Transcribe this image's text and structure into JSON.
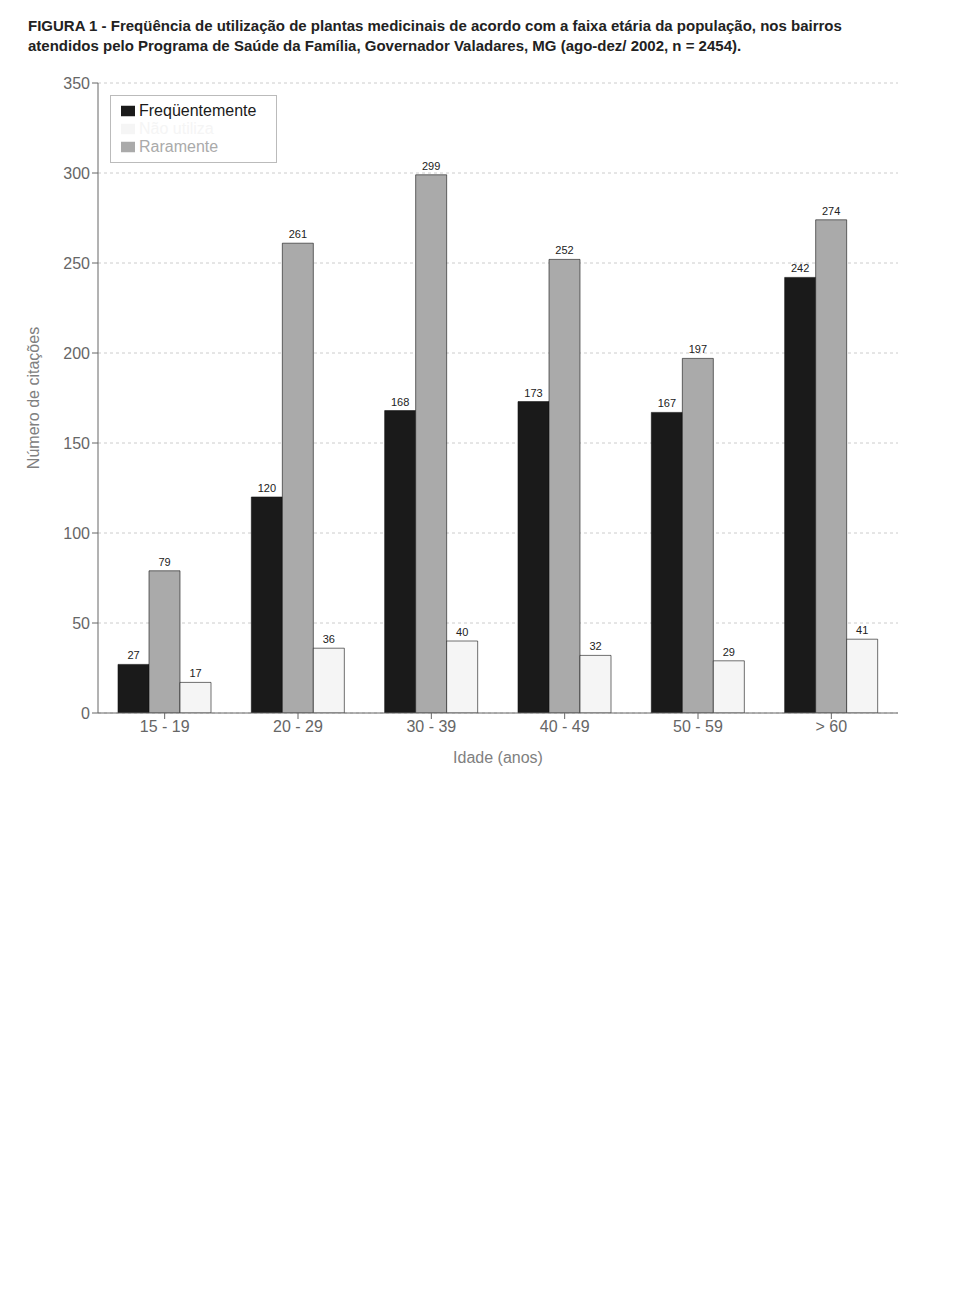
{
  "chart_data": {
    "type": "bar",
    "title": "FIGURA 1 - Freqüência de utilização de plantas medicinais de acordo com a faixa etária da população, nos bairros atendidos pelo Programa de Saúde da Família, Governador Valadares, MG (ago-dez/ 2002, n = 2454).",
    "categories": [
      "15 - 19",
      "20 - 29",
      "30 - 39",
      "40 - 49",
      "50 - 59",
      "> 60"
    ],
    "series": [
      {
        "name": "Freqüentemente",
        "color": "#1a1a1a",
        "values": [
          27,
          120,
          168,
          173,
          167,
          242
        ]
      },
      {
        "name": "Raramente",
        "color": "#aaaaaa",
        "values": [
          79,
          261,
          299,
          252,
          197,
          274
        ]
      },
      {
        "name": "Não utiliza",
        "color": "#f5f5f5",
        "values": [
          17,
          36,
          40,
          32,
          29,
          41
        ]
      }
    ],
    "xlabel": "Idade (anos)",
    "ylabel": "Número de citações",
    "ylim": [
      0,
      350
    ],
    "yticks": [
      0,
      50,
      100,
      150,
      200,
      250,
      300,
      350
    ],
    "grid": true,
    "legend": "upper left",
    "data_labels": true
  }
}
